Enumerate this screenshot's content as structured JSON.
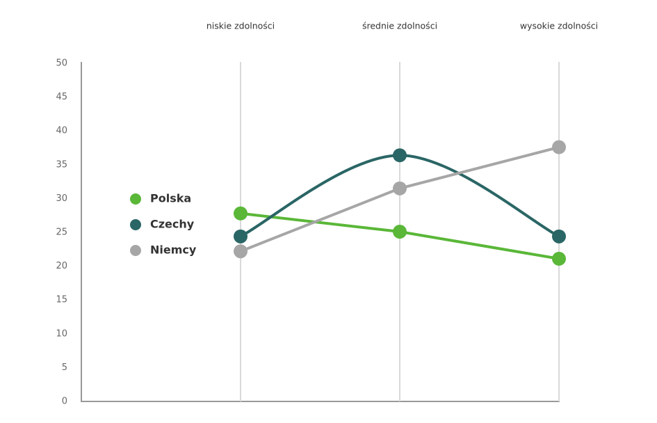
{
  "chart_data": {
    "type": "line",
    "categories": [
      "niskie zdolności",
      "średnie zdolności",
      "wysokie zdolności"
    ],
    "series": [
      {
        "name": "Polska",
        "color": "#5ab738",
        "smooth": false,
        "values": [
          27.8,
          25.1,
          21.1
        ]
      },
      {
        "name": "Czechy",
        "color": "#2a6665",
        "smooth": true,
        "values": [
          24.4,
          36.4,
          24.4
        ]
      },
      {
        "name": "Niemcy",
        "color": "#a6a6a6",
        "smooth": false,
        "values": [
          22.2,
          31.5,
          37.6
        ]
      }
    ],
    "ylim": [
      0,
      50
    ],
    "yticks": [
      0,
      5,
      10,
      15,
      20,
      25,
      30,
      35,
      40,
      45,
      50
    ],
    "grid": true,
    "legend": "left"
  }
}
